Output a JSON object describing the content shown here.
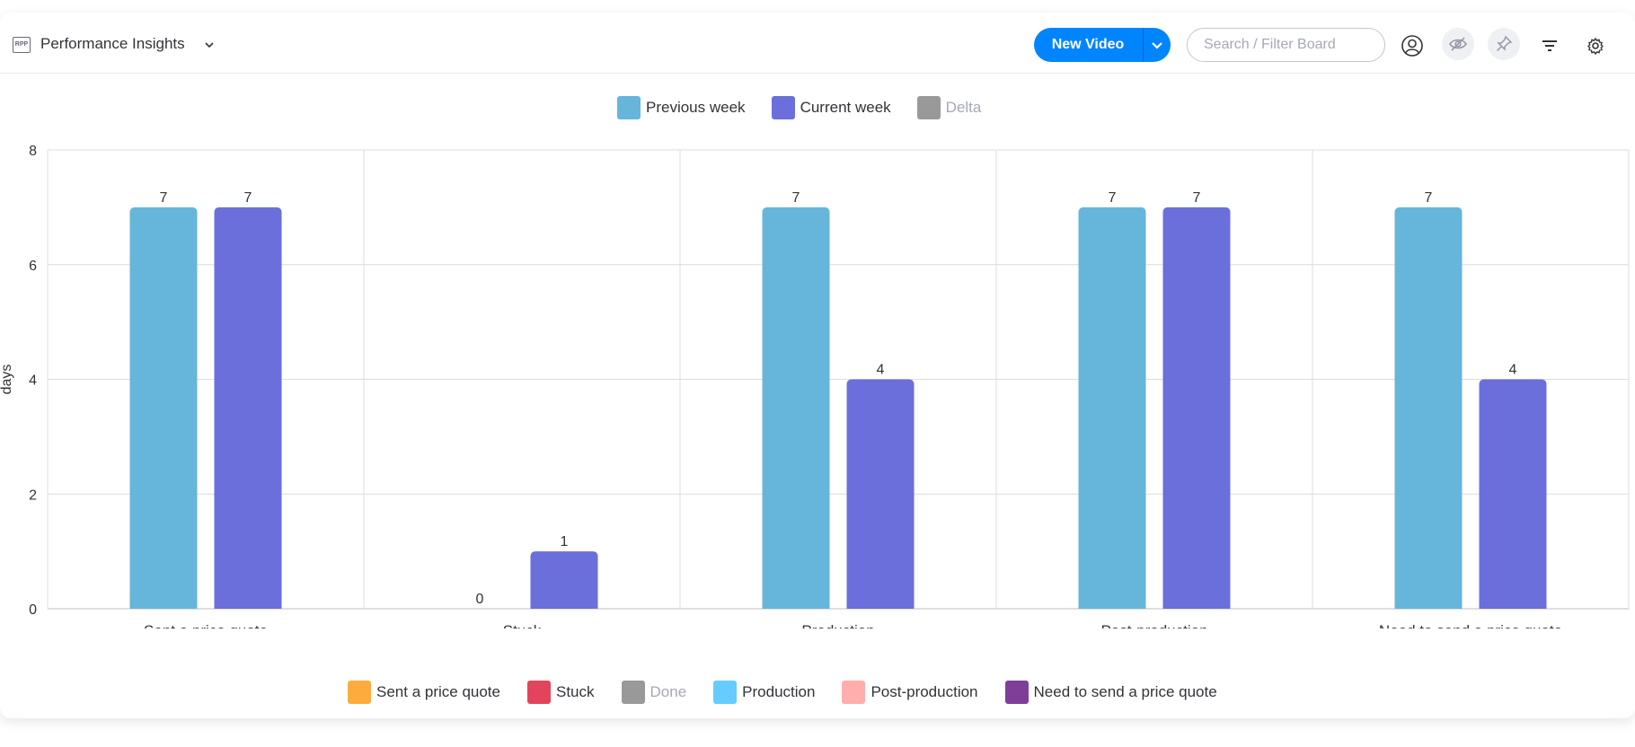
{
  "header": {
    "board_title": "Performance Insights",
    "board_icon_text": "RPP",
    "new_button_label": "New Video",
    "search_placeholder": "Search / Filter Board"
  },
  "top_legend": [
    {
      "label": "Previous week",
      "color": "#66b5db",
      "disabled": false
    },
    {
      "label": "Current week",
      "color": "#6a6fdb",
      "disabled": false
    },
    {
      "label": "Delta",
      "color": "#999999",
      "disabled": true
    }
  ],
  "bottom_legend": [
    {
      "label": "Sent a price quote",
      "color": "#fdab3d",
      "disabled": false
    },
    {
      "label": "Stuck",
      "color": "#e2445c",
      "disabled": false
    },
    {
      "label": "Done",
      "color": "#999999",
      "disabled": true
    },
    {
      "label": "Production",
      "color": "#66ccff",
      "disabled": false
    },
    {
      "label": "Post-production",
      "color": "#ffadad",
      "disabled": false
    },
    {
      "label": "Need to send a price quote",
      "color": "#7f3f98",
      "disabled": false
    }
  ],
  "chart_data": {
    "type": "bar",
    "categories": [
      "Sent a price quote",
      "Stuck",
      "Production",
      "Post-production",
      "Need to send a price quote"
    ],
    "series": [
      {
        "name": "Previous week",
        "color": "#66b5db",
        "values": [
          7,
          0,
          7,
          7,
          7
        ]
      },
      {
        "name": "Current week",
        "color": "#6a6fdb",
        "values": [
          7,
          1,
          4,
          7,
          4
        ]
      }
    ],
    "ylabel": "days",
    "ylim": [
      0,
      8
    ],
    "yticks": [
      0,
      2,
      4,
      6,
      8
    ],
    "grid": true,
    "legend_position": "top"
  }
}
